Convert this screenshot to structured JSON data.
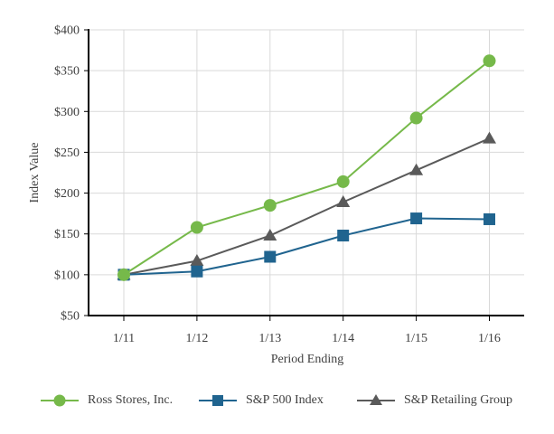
{
  "chart_data": {
    "type": "line",
    "title": "",
    "xlabel": "Period Ending",
    "ylabel": "Index Value",
    "categories": [
      "1/11",
      "1/12",
      "1/13",
      "1/14",
      "1/15",
      "1/16"
    ],
    "y_ticks": [
      {
        "label": "$50",
        "value": 50
      },
      {
        "label": "$100",
        "value": 100
      },
      {
        "label": "$150",
        "value": 150
      },
      {
        "label": "$200",
        "value": 200
      },
      {
        "label": "$250",
        "value": 250
      },
      {
        "label": "$300",
        "value": 300
      },
      {
        "label": "$350",
        "value": 350
      },
      {
        "label": "$400",
        "value": 400
      }
    ],
    "ylim": [
      50,
      400
    ],
    "grid": true,
    "legend_position": "bottom",
    "series": [
      {
        "name": "Ross Stores, Inc.",
        "marker": "circle",
        "color": "#76B94A",
        "values": [
          100,
          158,
          185,
          214,
          292,
          362
        ]
      },
      {
        "name": "S&P 500 Index",
        "marker": "square",
        "color": "#20648F",
        "values": [
          100,
          104,
          122,
          148,
          169,
          168
        ]
      },
      {
        "name": "S&P Retailing Group",
        "marker": "triangle",
        "color": "#5A5A5A",
        "values": [
          100,
          117,
          148,
          189,
          228,
          267
        ]
      }
    ]
  },
  "colors": {
    "grid": "#D9D9D9",
    "axis": "#000000",
    "text": "#3F3F3F",
    "background": "#FFFFFF"
  }
}
